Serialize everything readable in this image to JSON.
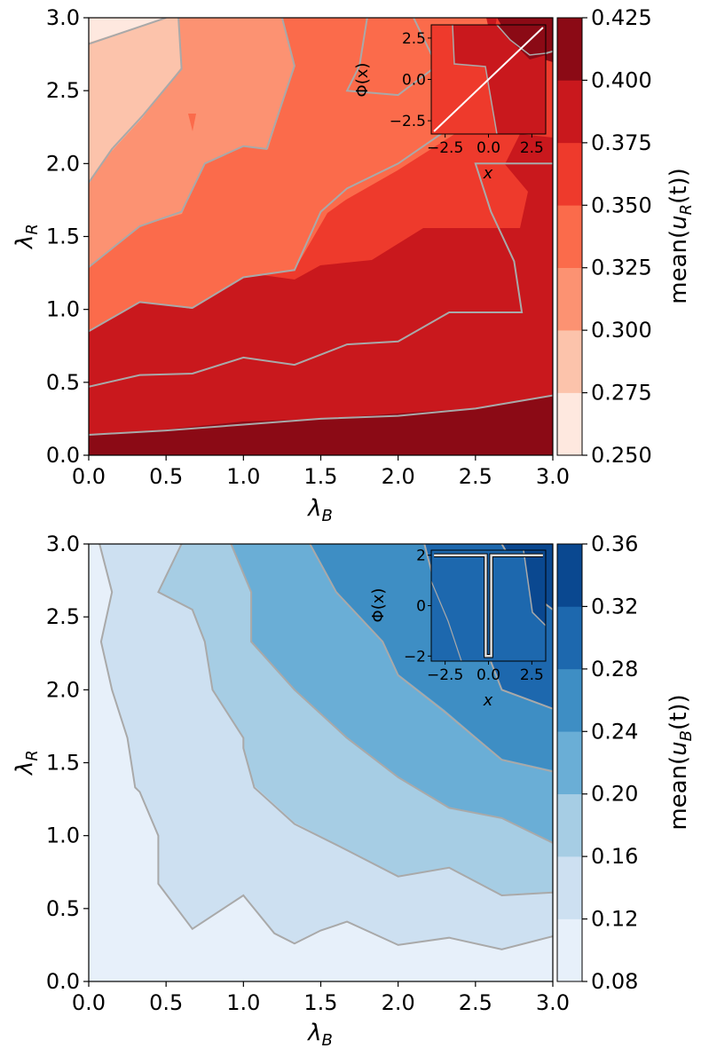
{
  "chart_data": [
    {
      "type": "contour",
      "xlabel": "λ",
      "xlabel_sub": "B",
      "ylabel": "λ",
      "ylabel_sub": "R",
      "xlim": [
        0,
        3
      ],
      "ylim": [
        0,
        3
      ],
      "x_ticks": [
        "0.0",
        "0.5",
        "1.0",
        "1.5",
        "2.0",
        "2.5",
        "3.0"
      ],
      "y_ticks": [
        "0.0",
        "0.5",
        "1.0",
        "1.5",
        "2.0",
        "2.5",
        "3.0"
      ],
      "colormap": "Reds",
      "colorbar": {
        "label_pre": "mean(",
        "label_var": "u",
        "label_sub": "R",
        "label_post": "(t))",
        "levels": [
          0.25,
          0.275,
          0.3,
          0.325,
          0.35,
          0.375,
          0.4,
          0.425
        ],
        "tick_labels": [
          "0.250",
          "0.275",
          "0.300",
          "0.325",
          "0.350",
          "0.375",
          "0.400",
          "0.425"
        ],
        "colors": [
          "#fee8df",
          "#fcc3ab",
          "#fc9272",
          "#fb6b4b",
          "#ee3a2c",
          "#c9181d",
          "#8b0a15"
        ]
      },
      "contour_lines": [
        {
          "level": 0.3,
          "points": [
            [
              0,
              2.82
            ],
            [
              0.5,
              3.0
            ]
          ]
        },
        {
          "level": 0.325,
          "points": [
            [
              0,
              1.87
            ],
            [
              0.15,
              2.1
            ],
            [
              0.35,
              2.33
            ],
            [
              0.6,
              2.65
            ],
            [
              0.58,
              3.0
            ]
          ]
        },
        {
          "level": 0.35,
          "points": [
            [
              0,
              1.29
            ],
            [
              0.33,
              1.57
            ],
            [
              0.6,
              1.67
            ],
            [
              0.75,
              2.0
            ],
            [
              1.0,
              2.12
            ],
            [
              1.15,
              2.1
            ],
            [
              1.33,
              2.67
            ],
            [
              1.25,
              3.0
            ]
          ]
        },
        {
          "level": 0.375,
          "points": [
            [
              0,
              0.85
            ],
            [
              0.33,
              1.05
            ],
            [
              0.67,
              1.01
            ],
            [
              1.0,
              1.22
            ],
            [
              1.33,
              1.27
            ],
            [
              1.5,
              1.67
            ],
            [
              1.67,
              1.83
            ],
            [
              2.0,
              2.0
            ],
            [
              2.45,
              2.33
            ],
            [
              2.67,
              2.67
            ],
            [
              3.0,
              2.77
            ]
          ]
        },
        {
          "level": 0.375,
          "points": [
            [
              1.8,
              3.0
            ],
            [
              1.75,
              2.67
            ],
            [
              1.67,
              2.5
            ],
            [
              2.0,
              2.47
            ],
            [
              2.25,
              2.67
            ],
            [
              2.1,
              3.0
            ]
          ]
        },
        {
          "level": 0.4,
          "points": [
            [
              0,
              0.47
            ],
            [
              0.33,
              0.55
            ],
            [
              0.67,
              0.56
            ],
            [
              1.0,
              0.67
            ],
            [
              1.33,
              0.62
            ],
            [
              1.67,
              0.76
            ],
            [
              2.0,
              0.78
            ],
            [
              2.33,
              0.98
            ],
            [
              2.8,
              0.98
            ],
            [
              2.75,
              1.33
            ],
            [
              2.6,
              1.67
            ],
            [
              2.5,
              2.0
            ],
            [
              2.7,
              2.0
            ],
            [
              3.0,
              2.0
            ]
          ]
        },
        {
          "level": 0.425,
          "points": [
            [
              0,
              0.14
            ],
            [
              0.5,
              0.17
            ],
            [
              1.0,
              0.21
            ],
            [
              1.5,
              0.25
            ],
            [
              2.0,
              0.27
            ],
            [
              2.5,
              0.32
            ],
            [
              3.0,
              0.41
            ]
          ]
        }
      ],
      "inset": {
        "xlabel": "x",
        "ylabel": "Φ(x)",
        "xlim": [
          -3.3,
          3.3
        ],
        "ylim": [
          -3.3,
          3.3
        ],
        "x_ticks": [
          "−2.5",
          "0.0",
          "2.5"
        ],
        "y_ticks": [
          "−2.5",
          "0.0",
          "2.5"
        ],
        "curve": {
          "x": [
            -3.14,
            3.14
          ],
          "y": [
            -3.14,
            3.14
          ]
        }
      }
    },
    {
      "type": "contour",
      "xlabel": "λ",
      "xlabel_sub": "B",
      "ylabel": "λ",
      "ylabel_sub": "R",
      "xlim": [
        0,
        3
      ],
      "ylim": [
        0,
        3
      ],
      "x_ticks": [
        "0.0",
        "0.5",
        "1.0",
        "1.5",
        "2.0",
        "2.5",
        "3.0"
      ],
      "y_ticks": [
        "0.0",
        "0.5",
        "1.0",
        "1.5",
        "2.0",
        "2.5",
        "3.0"
      ],
      "colormap": "Blues",
      "colorbar": {
        "label_pre": "mean(",
        "label_var": "u",
        "label_sub": "B",
        "label_post": "(t))",
        "levels": [
          0.08,
          0.12,
          0.16,
          0.2,
          0.24,
          0.28,
          0.32,
          0.36
        ],
        "tick_labels": [
          "0.08",
          "0.12",
          "0.16",
          "0.20",
          "0.24",
          "0.28",
          "0.32",
          "0.36"
        ],
        "colors": [
          "#e7f0fa",
          "#cde0f1",
          "#a6cde4",
          "#6aaed6",
          "#3e8ec4",
          "#1d68ae",
          "#0a4890"
        ]
      },
      "contour_lines": [
        {
          "level": 0.12,
          "points": [
            [
              0.07,
              3.0
            ],
            [
              0.15,
              2.67
            ],
            [
              0.08,
              2.33
            ],
            [
              0.15,
              2.0
            ],
            [
              0.25,
              1.67
            ],
            [
              0.3,
              1.33
            ],
            [
              0.33,
              1.3
            ],
            [
              0.45,
              1.0
            ],
            [
              0.45,
              0.67
            ],
            [
              0.67,
              0.36
            ],
            [
              1.0,
              0.59
            ],
            [
              1.2,
              0.33
            ],
            [
              1.33,
              0.26
            ],
            [
              1.5,
              0.35
            ],
            [
              1.67,
              0.41
            ],
            [
              2.0,
              0.25
            ],
            [
              2.33,
              0.3
            ],
            [
              2.67,
              0.22
            ],
            [
              3.0,
              0.31
            ]
          ]
        },
        {
          "level": 0.16,
          "points": [
            [
              0.6,
              3.0
            ],
            [
              0.45,
              2.67
            ],
            [
              0.67,
              2.55
            ],
            [
              0.75,
              2.33
            ],
            [
              0.8,
              2.0
            ],
            [
              1.0,
              1.67
            ],
            [
              1.0,
              1.6
            ],
            [
              1.07,
              1.33
            ],
            [
              1.33,
              1.08
            ],
            [
              1.67,
              0.9
            ],
            [
              2.0,
              0.72
            ],
            [
              2.33,
              0.78
            ],
            [
              2.67,
              0.59
            ],
            [
              3.0,
              0.61
            ]
          ]
        },
        {
          "level": 0.2,
          "points": [
            [
              0.92,
              3.0
            ],
            [
              1.05,
              2.67
            ],
            [
              1.05,
              2.33
            ],
            [
              1.33,
              2.0
            ],
            [
              1.67,
              1.67
            ],
            [
              2.0,
              1.4
            ],
            [
              2.33,
              1.19
            ],
            [
              2.67,
              1.12
            ],
            [
              3.0,
              0.95
            ]
          ]
        },
        {
          "level": 0.24,
          "points": [
            [
              1.43,
              3.0
            ],
            [
              1.6,
              2.67
            ],
            [
              1.9,
              2.33
            ],
            [
              2.0,
              2.1
            ],
            [
              2.3,
              1.85
            ],
            [
              2.67,
              1.52
            ],
            [
              3.0,
              1.44
            ]
          ]
        },
        {
          "level": 0.28,
          "points": [
            [
              2.17,
              3.0
            ],
            [
              2.25,
              2.67
            ],
            [
              2.55,
              2.33
            ],
            [
              2.67,
              2.0
            ],
            [
              3.0,
              1.87
            ]
          ]
        },
        {
          "level": 0.32,
          "points": [
            [
              2.67,
              3.0
            ],
            [
              2.85,
              2.67
            ],
            [
              3.0,
              2.55
            ]
          ]
        }
      ],
      "inset": {
        "xlabel": "x",
        "ylabel": "Φ(x)",
        "xlim": [
          -3.3,
          3.3
        ],
        "ylim": [
          -2.2,
          2.2
        ],
        "x_ticks": [
          "−2.5",
          "0.0",
          "2.5"
        ],
        "y_ticks": [
          "−2",
          "0",
          "2"
        ],
        "curve": {
          "x": [
            -3.14,
            -0.16,
            -0.16,
            0.16,
            0.16,
            3.14
          ],
          "y": [
            2.0,
            2.0,
            -2.0,
            -2.0,
            2.0,
            2.0
          ]
        }
      }
    }
  ]
}
